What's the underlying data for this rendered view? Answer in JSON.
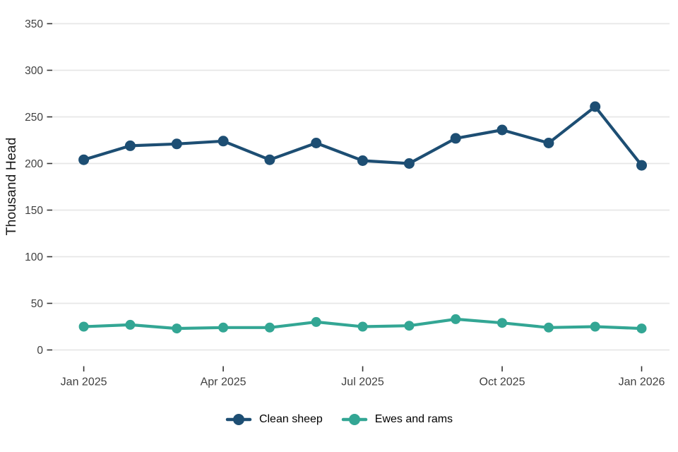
{
  "chart_data": {
    "type": "line",
    "x": [
      "Jan 2025",
      "Feb 2025",
      "Mar 2025",
      "Apr 2025",
      "May 2025",
      "Jun 2025",
      "Jul 2025",
      "Aug 2025",
      "Sep 2025",
      "Oct 2025",
      "Nov 2025",
      "Dec 2025",
      "Jan 2026"
    ],
    "series": [
      {
        "name": "Clean sheep",
        "color": "#1d4e73",
        "values": [
          204,
          219,
          221,
          224,
          204,
          222,
          203,
          200,
          227,
          236,
          222,
          261,
          198
        ]
      },
      {
        "name": "Ewes and rams",
        "color": "#33a694",
        "values": [
          25,
          27,
          23,
          24,
          24,
          30,
          25,
          26,
          33,
          29,
          24,
          25,
          23
        ]
      }
    ],
    "title": "",
    "xlabel": "",
    "ylabel": "Thousand Head",
    "ylim": [
      0,
      350
    ],
    "yticks": [
      0,
      50,
      100,
      150,
      200,
      250,
      300,
      350
    ],
    "xticks": [
      {
        "label": "Jan 2025",
        "index": 0
      },
      {
        "label": "Apr 2025",
        "index": 3
      },
      {
        "label": "Jul 2025",
        "index": 6
      },
      {
        "label": "Oct 2025",
        "index": 9
      },
      {
        "label": "Jan 2026",
        "index": 12
      }
    ],
    "grid": "horizontal-major-only",
    "legend_position": "bottom-center",
    "colors": {
      "grid_line": "#e6e6e6",
      "tick_mark": "#333333",
      "tick_label": "#404040",
      "axis_title": "#1a1a1a",
      "background": "#ffffff"
    }
  },
  "legend": {
    "items": [
      {
        "label": "Clean sheep"
      },
      {
        "label": "Ewes and rams"
      }
    ]
  }
}
